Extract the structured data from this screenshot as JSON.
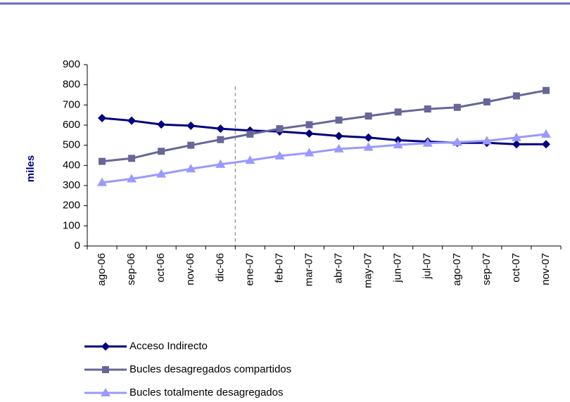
{
  "chart_data": {
    "type": "line",
    "y_label": "miles",
    "categories": [
      "ago-06",
      "sep-06",
      "oct-06",
      "nov-06",
      "dic-06",
      "ene-07",
      "feb-07",
      "mar-07",
      "abr-07",
      "may-07",
      "jun-07",
      "jul-07",
      "ago-07",
      "sep-07",
      "oct-07",
      "nov-07"
    ],
    "series": [
      {
        "name": "Acceso Indirecto",
        "color": "#000080",
        "marker": "diamond",
        "values": [
          635,
          622,
          603,
          597,
          582,
          573,
          568,
          558,
          546,
          538,
          525,
          518,
          512,
          512,
          505,
          505
        ]
      },
      {
        "name": "Bucles desagregados compartidos",
        "color": "#666699",
        "marker": "square",
        "values": [
          420,
          435,
          470,
          500,
          528,
          555,
          582,
          602,
          625,
          645,
          665,
          680,
          688,
          715,
          745,
          772
        ]
      },
      {
        "name": "Bucles totalmente desagregados",
        "color": "#9999ff",
        "marker": "triangle",
        "values": [
          315,
          333,
          357,
          383,
          405,
          425,
          447,
          462,
          482,
          490,
          502,
          510,
          515,
          522,
          538,
          555
        ]
      }
    ],
    "ylim": [
      0,
      900
    ],
    "yticks": [
      0,
      100,
      200,
      300,
      400,
      500,
      600,
      700,
      800,
      900
    ],
    "grid": false
  }
}
